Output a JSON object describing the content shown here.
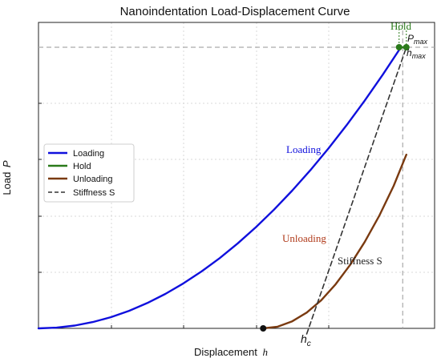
{
  "chart_data": {
    "type": "line",
    "title": "Nanoindentation Load-Displacement Curve",
    "xlabel": "Displacement",
    "xlabel_symbol": "h",
    "ylabel": "Load",
    "ylabel_symbol": "P",
    "xlim": [
      0,
      1.0
    ],
    "ylim": [
      0,
      1.0
    ],
    "grid": true,
    "legend_position": "center-left",
    "series": [
      {
        "name": "Loading",
        "color": "#1010dd",
        "style": "solid",
        "x": [
          0,
          0.05,
          0.1,
          0.15,
          0.2,
          0.25,
          0.3,
          0.35,
          0.4,
          0.45,
          0.5,
          0.55,
          0.6,
          0.65,
          0.7,
          0.75,
          0.8,
          0.85,
          0.9,
          0.95,
          1.0
        ],
        "y": [
          0,
          0.0025,
          0.01,
          0.0225,
          0.04,
          0.0625,
          0.09,
          0.1225,
          0.16,
          0.2025,
          0.25,
          0.3025,
          0.36,
          0.4225,
          0.49,
          0.5625,
          0.64,
          0.7225,
          0.81,
          0.9025,
          1.0
        ]
      },
      {
        "name": "Hold",
        "color": "#2a7a1a",
        "style": "solid",
        "x": [
          0.995,
          1.015
        ],
        "y": [
          1.0,
          1.0
        ]
      },
      {
        "name": "Unloading",
        "color": "#7a3a10",
        "style": "solid",
        "x": [
          0.62,
          0.66,
          0.7,
          0.74,
          0.78,
          0.82,
          0.86,
          0.9,
          0.94,
          0.98,
          1.015
        ],
        "y": [
          0,
          0.006,
          0.025,
          0.056,
          0.1,
          0.157,
          0.226,
          0.307,
          0.4,
          0.507,
          0.618
        ]
      },
      {
        "name": "Stiffness S",
        "color": "#333333",
        "style": "dashed",
        "x": [
          0.74,
          1.015
        ],
        "y": [
          -0.02,
          1.0
        ]
      }
    ],
    "unload_display_end": 1.0,
    "annotations": {
      "hold": "Hold",
      "pmax": "P",
      "pmax_sub": "max",
      "hmax": "h",
      "hmax_sub": "max",
      "hc": "h",
      "hc_sub": "c",
      "loading": "Loading",
      "unloading": "Unloading",
      "stiffness": "Stiffness S"
    }
  },
  "colors": {
    "loading": "#1010dd",
    "hold": "#2a7a1a",
    "unloading": "#7a3a10",
    "unloading_label": "#b03a1a",
    "stiffness": "#333333",
    "reference": "#aaaaaa"
  }
}
